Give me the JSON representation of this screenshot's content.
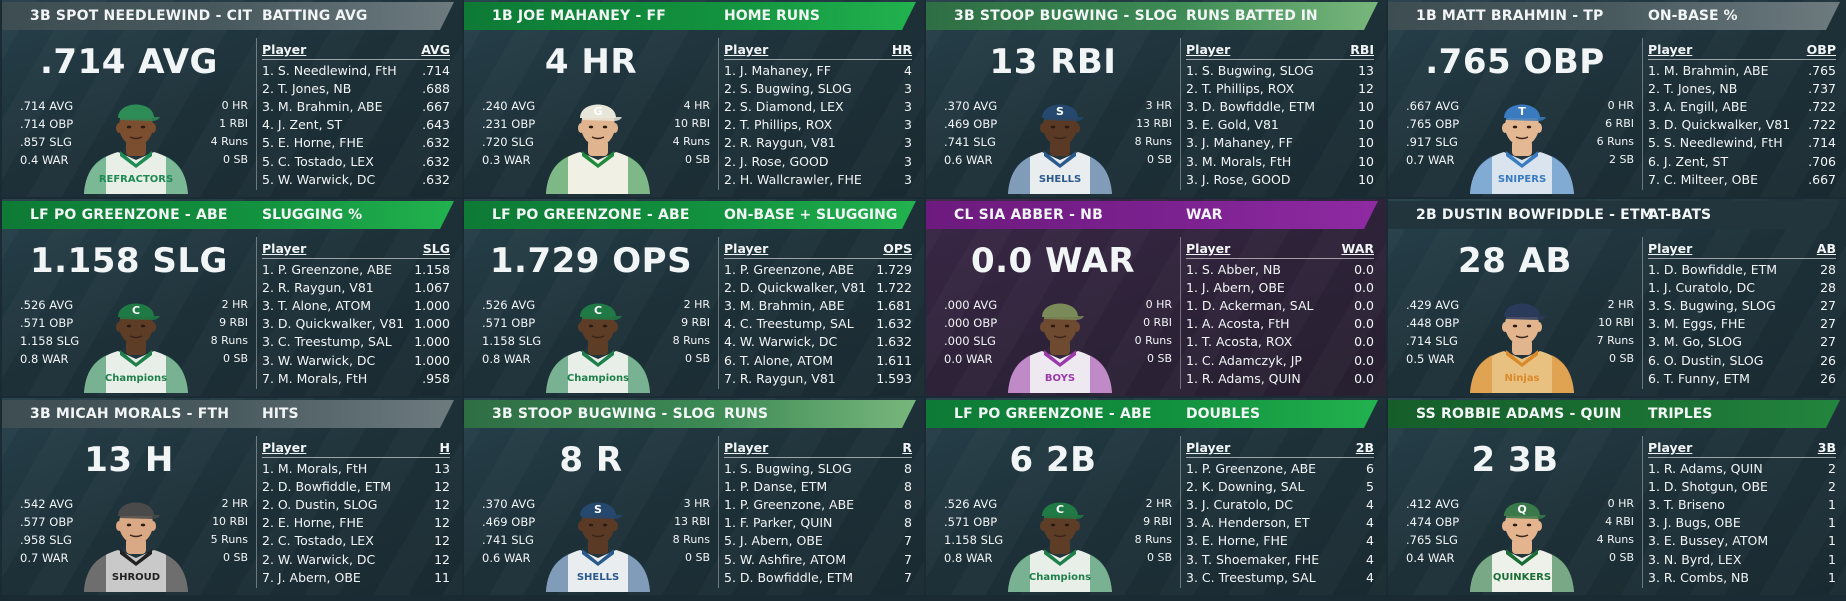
{
  "cards": [
    {
      "color": "gray",
      "player": "3B SPOT NEEDLEWIND - CIT",
      "category": "BATTING AVG",
      "headline": ".714 AVG",
      "avg": ".714 AVG",
      "obp": ".714 OBP",
      "slg": ".857 SLG",
      "war": "0.4 WAR",
      "hr": "0 HR",
      "rbi": "1 RBI",
      "runs": "4 Runs",
      "sb": "0 SB",
      "lb_player": "Player",
      "lb_stat": "AVG",
      "rows": [
        [
          "1. S. Needlewind, FtH",
          ".714"
        ],
        [
          "2. T. Jones, NB",
          ".688"
        ],
        [
          "3. M. Brahmin, ABE",
          ".667"
        ],
        [
          "4. J. Zent, ST",
          ".643"
        ],
        [
          "5. E. Horne, FHE",
          ".632"
        ],
        [
          "5. C. Tostado, LEX",
          ".632"
        ],
        [
          "5. W. Warwick, DC",
          ".632"
        ]
      ],
      "skin": "#7a4e2e",
      "jersey": "#e8efe6",
      "trim": "#1f8a53",
      "cap": "#2e8c57",
      "cap_letter": "",
      "team_text": "REFRACTORS"
    },
    {
      "color": "green",
      "player": "1B JOE MAHANEY - FF",
      "category": "HOME RUNS",
      "headline": "4 HR",
      "avg": ".240 AVG",
      "obp": ".231 OBP",
      "slg": ".720 SLG",
      "war": "0.3 WAR",
      "hr": "4 HR",
      "rbi": "10 RBI",
      "runs": "4 Runs",
      "sb": "0 SB",
      "lb_player": "Player",
      "lb_stat": "HR",
      "rows": [
        [
          "1. J. Mahaney, FF",
          "4"
        ],
        [
          "2. S. Bugwing, SLOG",
          "3"
        ],
        [
          "2. S. Diamond, LEX",
          "3"
        ],
        [
          "2. T. Phillips, ROX",
          "3"
        ],
        [
          "2. R. Raygun, V81",
          "3"
        ],
        [
          "2. J. Rose, GOOD",
          "3"
        ],
        [
          "2. H. Wallcrawler, FHE",
          "3"
        ]
      ],
      "skin": "#e0b48f",
      "jersey": "#f1f0e4",
      "trim": "#1f8a3a",
      "cap": "#e8e6d8",
      "cap_letter": "G",
      "team_text": ""
    },
    {
      "color": "lgreen",
      "player": "3B STOOP BUGWING - SLOG",
      "category": "RUNS BATTED IN",
      "headline": "13 RBI",
      "avg": ".370 AVG",
      "obp": ".469 OBP",
      "slg": ".741 SLG",
      "war": "0.6 WAR",
      "hr": "3 HR",
      "rbi": "13 RBI",
      "runs": "8 Runs",
      "sb": "0 SB",
      "lb_player": "Player",
      "lb_stat": "RBI",
      "rows": [
        [
          "1. S. Bugwing, SLOG",
          "13"
        ],
        [
          "2. T. Phillips, ROX",
          "12"
        ],
        [
          "3. D. Bowfiddle, ETM",
          "10"
        ],
        [
          "3. E. Gold, V81",
          "10"
        ],
        [
          "3. J. Mahaney, FF",
          "10"
        ],
        [
          "3. M. Morals, FtH",
          "10"
        ],
        [
          "3. J. Rose, GOOD",
          "10"
        ]
      ],
      "skin": "#5a3a25",
      "jersey": "#e9edf0",
      "trim": "#2a5a8c",
      "cap": "#24486e",
      "cap_letter": "S",
      "team_text": "SHELLS"
    },
    {
      "color": "gray",
      "player": "1B MATT BRAHMIN - TP",
      "category": "ON-BASE %",
      "headline": ".765 OBP",
      "avg": ".667 AVG",
      "obp": ".765 OBP",
      "slg": ".917 SLG",
      "war": "0.7 WAR",
      "hr": "0 HR",
      "rbi": "6 RBI",
      "runs": "6 Runs",
      "sb": "2 SB",
      "lb_player": "Player",
      "lb_stat": "OBP",
      "rows": [
        [
          "1. M. Brahmin, ABE",
          ".765"
        ],
        [
          "2. T. Jones, NB",
          ".737"
        ],
        [
          "3. A. Engill, ABE",
          ".722"
        ],
        [
          "3. D. Quickwalker, V81",
          ".722"
        ],
        [
          "5. S. Needlewind, FtH",
          ".714"
        ],
        [
          "6. J. Zent, ST",
          ".706"
        ],
        [
          "7. C. Milteer, OBE",
          ".667"
        ]
      ],
      "skin": "#e4b893",
      "jersey": "#d9e4ee",
      "trim": "#3a7bc0",
      "cap": "#3a7bc0",
      "cap_letter": "T",
      "team_text": "SNIPERS"
    },
    {
      "color": "green",
      "player": "LF PO GREENZONE - ABE",
      "category": "SLUGGING %",
      "headline": "1.158 SLG",
      "avg": ".526 AVG",
      "obp": ".571 OBP",
      "slg": "1.158 SLG",
      "war": "0.8 WAR",
      "hr": "2 HR",
      "rbi": "9 RBI",
      "runs": "8 Runs",
      "sb": "0 SB",
      "lb_player": "Player",
      "lb_stat": "SLG",
      "rows": [
        [
          "1. P. Greenzone, ABE",
          "1.158"
        ],
        [
          "2. R. Raygun, V81",
          "1.067"
        ],
        [
          "3. T. Alone, ATOM",
          "1.000"
        ],
        [
          "3. D. Quickwalker, V81",
          "1.000"
        ],
        [
          "3. C. Treestump, SAL",
          "1.000"
        ],
        [
          "3. W. Warwick, DC",
          "1.000"
        ],
        [
          "7. M. Morals, FtH",
          ".958"
        ]
      ],
      "skin": "#5e3d27",
      "jersey": "#e8efe8",
      "trim": "#1e7f4a",
      "cap": "#1f7a45",
      "cap_letter": "C",
      "team_text": "Champions"
    },
    {
      "color": "green",
      "player": "LF PO GREENZONE - ABE",
      "category": "ON-BASE + SLUGGING",
      "headline": "1.729 OPS",
      "avg": ".526 AVG",
      "obp": ".571 OBP",
      "slg": "1.158 SLG",
      "war": "0.8 WAR",
      "hr": "2 HR",
      "rbi": "9 RBI",
      "runs": "8 Runs",
      "sb": "0 SB",
      "lb_player": "Player",
      "lb_stat": "OPS",
      "rows": [
        [
          "1. P. Greenzone, ABE",
          "1.729"
        ],
        [
          "2. D. Quickwalker, V81",
          "1.722"
        ],
        [
          "3. M. Brahmin, ABE",
          "1.681"
        ],
        [
          "4. C. Treestump, SAL",
          "1.632"
        ],
        [
          "4. W. Warwick, DC",
          "1.632"
        ],
        [
          "6. T. Alone, ATOM",
          "1.611"
        ],
        [
          "7. R. Raygun, V81",
          "1.593"
        ]
      ],
      "skin": "#5e3d27",
      "jersey": "#e8efe8",
      "trim": "#1e7f4a",
      "cap": "#1f7a45",
      "cap_letter": "C",
      "team_text": "Champions"
    },
    {
      "color": "purple",
      "player": "CL SIA ABBER - NB",
      "category": "WAR",
      "headline": "0.0 WAR",
      "avg": ".000 AVG",
      "obp": ".000 OBP",
      "slg": ".000 SLG",
      "war": "0.0 WAR",
      "hr": "0 HR",
      "rbi": "0 RBI",
      "runs": "0 Runs",
      "sb": "0 SB",
      "lb_player": "Player",
      "lb_stat": "WAR",
      "rows": [
        [
          "1. S. Abber, NB",
          "0.0"
        ],
        [
          "1. J. Abern, OBE",
          "0.0"
        ],
        [
          "1. D. Ackerman, SAL",
          "0.0"
        ],
        [
          "1. A. Acosta, FtH",
          "0.0"
        ],
        [
          "1. T. Acosta, ROX",
          "0.0"
        ],
        [
          "1. C. Adamczyk, JP",
          "0.0"
        ],
        [
          "1. R. Adams, QUIN",
          "0.0"
        ]
      ],
      "skin": "#6e4a30",
      "jersey": "#eee9f0",
      "trim": "#9a3aa8",
      "cap": "#7a8a58",
      "cap_letter": "",
      "team_text": "BOYS"
    },
    {
      "color": "dark",
      "player": "2B DUSTIN BOWFIDDLE - ETM",
      "category": "AT-BATS",
      "headline": "28 AB",
      "avg": ".429 AVG",
      "obp": ".448 OBP",
      "slg": ".714 SLG",
      "war": "0.5 WAR",
      "hr": "2 HR",
      "rbi": "10 RBI",
      "runs": "7 Runs",
      "sb": "0 SB",
      "lb_player": "Player",
      "lb_stat": "AB",
      "rows": [
        [
          "1. D. Bowfiddle, ETM",
          "28"
        ],
        [
          "1. J. Curatolo, DC",
          "28"
        ],
        [
          "3. S. Bugwing, SLOG",
          "27"
        ],
        [
          "3. M. Eggs, FHE",
          "27"
        ],
        [
          "3. M. Go, SLOG",
          "27"
        ],
        [
          "6. O. Dustin, SLOG",
          "26"
        ],
        [
          "6. T. Funny, ETM",
          "26"
        ]
      ],
      "skin": "#e2b58f",
      "jersey": "#e8c080",
      "trim": "#d98a2a",
      "cap": "#2a3a5a",
      "cap_letter": "",
      "team_text": "Ninjas"
    },
    {
      "color": "gray",
      "player": "3B MICAH MORALS - FTH",
      "category": "HITS",
      "headline": "13 H",
      "avg": ".542 AVG",
      "obp": ".577 OBP",
      "slg": ".958 SLG",
      "war": "0.7 WAR",
      "hr": "2 HR",
      "rbi": "10 RBI",
      "runs": "5 Runs",
      "sb": "0 SB",
      "lb_player": "Player",
      "lb_stat": "H",
      "rows": [
        [
          "1. M. Morals, FtH",
          "13"
        ],
        [
          "2. D. Bowfiddle, ETM",
          "12"
        ],
        [
          "2. O. Dustin, SLOG",
          "12"
        ],
        [
          "2. E. Horne, FHE",
          "12"
        ],
        [
          "2. C. Tostado, LEX",
          "12"
        ],
        [
          "2. W. Warwick, DC",
          "12"
        ],
        [
          "7. J. Abern, OBE",
          "11"
        ]
      ],
      "skin": "#d8a984",
      "jersey": "#c9c9c9",
      "trim": "#222222",
      "cap": "#4a4a4a",
      "cap_letter": "",
      "team_text": "SHROUD"
    },
    {
      "color": "lgreen",
      "player": "3B STOOP BUGWING - SLOG",
      "category": "RUNS",
      "headline": "8 R",
      "avg": ".370 AVG",
      "obp": ".469 OBP",
      "slg": ".741 SLG",
      "war": "0.6 WAR",
      "hr": "3 HR",
      "rbi": "13 RBI",
      "runs": "8 Runs",
      "sb": "0 SB",
      "lb_player": "Player",
      "lb_stat": "R",
      "rows": [
        [
          "1. S. Bugwing, SLOG",
          "8"
        ],
        [
          "1. P. Danse, ETM",
          "8"
        ],
        [
          "1. P. Greenzone, ABE",
          "8"
        ],
        [
          "1. F. Parker, QUIN",
          "8"
        ],
        [
          "5. J. Abern, OBE",
          "7"
        ],
        [
          "5. W. Ashfire, ATOM",
          "7"
        ],
        [
          "5. D. Bowfiddle, ETM",
          "7"
        ]
      ],
      "skin": "#5a3a25",
      "jersey": "#e9edf0",
      "trim": "#2a5a8c",
      "cap": "#24486e",
      "cap_letter": "S",
      "team_text": "SHELLS"
    },
    {
      "color": "green",
      "player": "LF PO GREENZONE - ABE",
      "category": "DOUBLES",
      "headline": "6 2B",
      "avg": ".526 AVG",
      "obp": ".571 OBP",
      "slg": "1.158 SLG",
      "war": "0.8 WAR",
      "hr": "2 HR",
      "rbi": "9 RBI",
      "runs": "8 Runs",
      "sb": "0 SB",
      "lb_player": "Player",
      "lb_stat": "2B",
      "rows": [
        [
          "1. P. Greenzone, ABE",
          "6"
        ],
        [
          "2. K. Downing, SAL",
          "5"
        ],
        [
          "3. J. Curatolo, DC",
          "4"
        ],
        [
          "3. A. Henderson, ET",
          "4"
        ],
        [
          "3. E. Horne, FHE",
          "4"
        ],
        [
          "3. T. Shoemaker, FHE",
          "4"
        ],
        [
          "3. C. Treestump, SAL",
          "4"
        ]
      ],
      "skin": "#5e3d27",
      "jersey": "#e8efe8",
      "trim": "#1e7f4a",
      "cap": "#1f7a45",
      "cap_letter": "C",
      "team_text": "Champions"
    },
    {
      "color": "dgreen",
      "player": "SS ROBBIE ADAMS - QUIN",
      "category": "TRIPLES",
      "headline": "2 3B",
      "avg": ".412 AVG",
      "obp": ".474 OBP",
      "slg": ".765 SLG",
      "war": "0.4 WAR",
      "hr": "0 HR",
      "rbi": "4 RBI",
      "runs": "4 Runs",
      "sb": "0 SB",
      "lb_player": "Player",
      "lb_stat": "3B",
      "rows": [
        [
          "1. R. Adams, QUIN",
          "2"
        ],
        [
          "1. D. Shotgun, OBE",
          "2"
        ],
        [
          "3. T. Briseno",
          "1"
        ],
        [
          "3. J. Bugs, OBE",
          "1"
        ],
        [
          "3. E. Bussey, ATOM",
          "1"
        ],
        [
          "3. N. Byrd, LEX",
          "1"
        ],
        [
          "3. R. Combs, NB",
          "1"
        ]
      ],
      "skin": "#e4b48e",
      "jersey": "#eef0ea",
      "trim": "#1a6e34",
      "cap": "#3a7a4a",
      "cap_letter": "Q",
      "team_text": "QUINKERS"
    }
  ]
}
